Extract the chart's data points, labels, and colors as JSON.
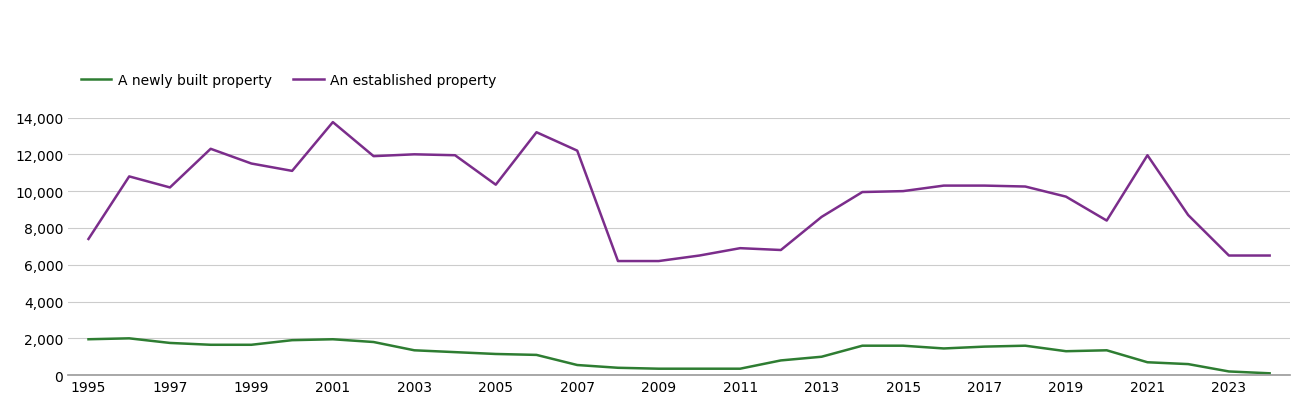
{
  "years": [
    1995,
    1996,
    1997,
    1998,
    1999,
    2000,
    2001,
    2002,
    2003,
    2004,
    2005,
    2006,
    2007,
    2008,
    2009,
    2010,
    2011,
    2012,
    2013,
    2014,
    2015,
    2016,
    2017,
    2018,
    2019,
    2020,
    2021,
    2022,
    2023,
    2024
  ],
  "new_builds": [
    1950,
    2000,
    1750,
    1650,
    1650,
    1900,
    1950,
    1800,
    1350,
    1250,
    1150,
    1100,
    550,
    400,
    350,
    350,
    350,
    800,
    1000,
    1600,
    1600,
    1450,
    1550,
    1600,
    1300,
    1350,
    700,
    600,
    200,
    100
  ],
  "established": [
    7400,
    10800,
    10200,
    12300,
    11500,
    11100,
    13750,
    11900,
    12000,
    11950,
    10350,
    13200,
    12200,
    6200,
    6200,
    6500,
    6900,
    6800,
    8600,
    9950,
    10000,
    10300,
    10300,
    10250,
    9700,
    8400,
    11950,
    8700,
    6500,
    6500
  ],
  "new_builds_color": "#2e7d32",
  "established_color": "#7b2d8b",
  "new_builds_label": "A newly built property",
  "established_label": "An established property",
  "ylim": [
    0,
    14000
  ],
  "yticks": [
    0,
    2000,
    4000,
    6000,
    8000,
    10000,
    12000,
    14000
  ],
  "xlim": [
    1994.5,
    2024.5
  ],
  "xtick_years": [
    1995,
    1997,
    1999,
    2001,
    2003,
    2005,
    2007,
    2009,
    2011,
    2013,
    2015,
    2017,
    2019,
    2021,
    2023
  ],
  "background_color": "#ffffff",
  "grid_color": "#cccccc",
  "line_width": 1.8,
  "legend_fontsize": 10,
  "tick_fontsize": 10
}
